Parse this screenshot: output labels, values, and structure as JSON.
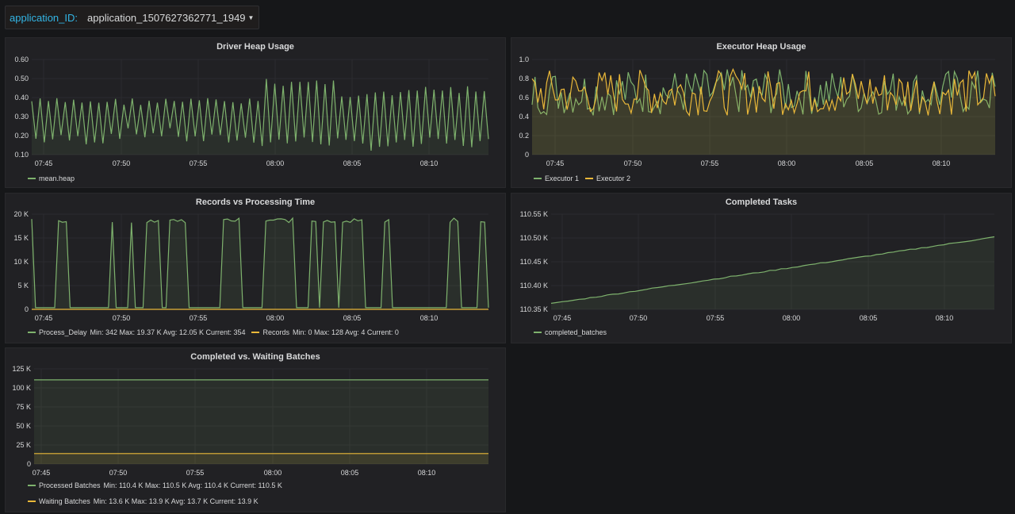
{
  "variable": {
    "label": "application_ID:",
    "value": "application_1507627362771_1949"
  },
  "colors": {
    "green": "#7eb26d",
    "yellow": "#eab839"
  },
  "panels": [
    {
      "title": "Driver Heap Usage",
      "chart_data": {
        "type": "line",
        "yticks": [
          "0.60",
          "0.50",
          "0.40",
          "0.30",
          "0.20",
          "0.10"
        ],
        "ylim": [
          0.1,
          0.6
        ],
        "xticks": [
          "07:45",
          "07:50",
          "07:55",
          "08:00",
          "08:05",
          "08:10"
        ],
        "series": [
          {
            "name": "mean.heap",
            "pattern": "oscillating",
            "low": [
              0.15,
              0.18,
              0.15,
              0.14,
              0.12,
              0.13
            ],
            "high": [
              0.4,
              0.4,
              0.4,
              0.5,
              0.44,
              0.46
            ]
          }
        ]
      },
      "legend": [
        {
          "name": "mean.heap",
          "color": "green",
          "stats": ""
        }
      ]
    },
    {
      "title": "Executor Heap Usage",
      "chart_data": {
        "type": "line",
        "yticks": [
          "1.0",
          "0.8",
          "0.6",
          "0.4",
          "0.2",
          "0"
        ],
        "ylim": [
          0,
          1.0
        ],
        "xticks": [
          "07:45",
          "07:50",
          "07:55",
          "08:00",
          "08:05",
          "08:10"
        ],
        "series": [
          {
            "name": "Executor 1",
            "pattern": "noisy",
            "range": [
              0.15,
              0.9
            ]
          },
          {
            "name": "Executor 2",
            "pattern": "noisy",
            "range": [
              0.15,
              0.9
            ]
          }
        ]
      },
      "legend": [
        {
          "name": "Executor 1",
          "color": "green",
          "stats": ""
        },
        {
          "name": "Executor 2",
          "color": "yellow",
          "stats": ""
        }
      ]
    },
    {
      "title": "Records vs Processing Time",
      "chart_data": {
        "type": "line",
        "yticks": [
          "20 K",
          "15 K",
          "10 K",
          "5 K",
          "0"
        ],
        "ylim": [
          0,
          20000
        ],
        "xticks": [
          "07:45",
          "07:50",
          "07:55",
          "08:00",
          "08:05",
          "08:10"
        ],
        "series": [
          {
            "name": "Process_Delay",
            "pattern": "square",
            "min": 342,
            "max": 19370
          },
          {
            "name": "Records",
            "pattern": "flat",
            "value": 4
          }
        ]
      },
      "legend": [
        {
          "name": "Process_Delay",
          "color": "green",
          "stats": "Min: 342  Max: 19.37 K  Avg: 12.05 K  Current: 354"
        },
        {
          "name": "Records",
          "color": "yellow",
          "stats": "Min: 0  Max: 128  Avg: 4  Current: 0"
        }
      ]
    },
    {
      "title": "Completed Tasks",
      "chart_data": {
        "type": "line",
        "yticks": [
          "110.55 K",
          "110.50 K",
          "110.45 K",
          "110.40 K",
          "110.35 K"
        ],
        "ylim": [
          110350,
          110550
        ],
        "xticks": [
          "07:45",
          "07:50",
          "07:55",
          "08:00",
          "08:05",
          "08:10"
        ],
        "series": [
          {
            "name": "completed_batches",
            "pattern": "rising",
            "start": 110362,
            "end": 110502
          }
        ]
      },
      "legend": [
        {
          "name": "completed_batches",
          "color": "green",
          "stats": ""
        }
      ]
    },
    {
      "title": "Completed vs. Waiting Batches",
      "chart_data": {
        "type": "line",
        "yticks": [
          "125 K",
          "100 K",
          "75 K",
          "50 K",
          "25 K",
          "0"
        ],
        "ylim": [
          0,
          125000
        ],
        "xticks": [
          "07:45",
          "07:50",
          "07:55",
          "08:00",
          "08:05",
          "08:10"
        ],
        "series": [
          {
            "name": "Processed Batches",
            "pattern": "flat",
            "value": 110500
          },
          {
            "name": "Waiting Batches",
            "pattern": "flat",
            "value": 13700
          }
        ]
      },
      "legend": [
        {
          "name": "Processed Batches",
          "color": "green",
          "stats": "Min: 110.4 K  Max: 110.5 K  Avg: 110.4 K  Current: 110.5 K"
        },
        {
          "name": "Waiting Batches",
          "color": "yellow",
          "stats": "Min: 13.6 K  Max: 13.9 K  Avg: 13.7 K  Current: 13.9 K"
        }
      ]
    }
  ]
}
